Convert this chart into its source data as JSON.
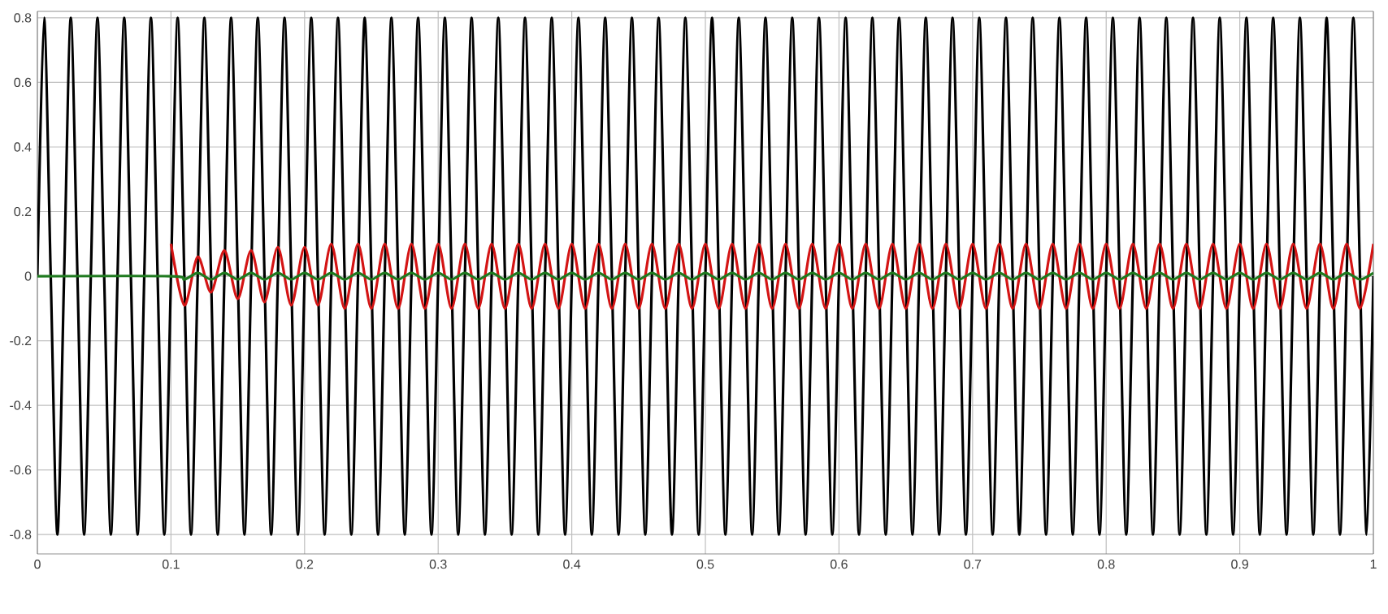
{
  "chart_data": {
    "type": "line",
    "xlim": [
      0,
      1
    ],
    "ylim": [
      -0.86,
      0.82
    ],
    "xticks": [
      0,
      0.1,
      0.2,
      0.3,
      0.4,
      0.5,
      0.6,
      0.7,
      0.8,
      0.9,
      1
    ],
    "yticks": [
      -0.8,
      -0.6,
      -0.4,
      -0.2,
      0,
      0.2,
      0.4,
      0.6,
      0.8
    ],
    "grid": true,
    "series": [
      {
        "color": "#000000",
        "x": [
          0,
          0.005,
          0.01,
          0.015,
          0.02,
          0.025,
          0.03,
          0.035,
          0.04,
          0.045,
          0.05,
          0.055,
          0.06,
          0.065,
          0.07,
          0.075,
          0.08,
          0.085,
          0.09,
          0.095,
          0.1,
          0.105,
          0.11,
          0.115,
          0.12,
          0.125,
          0.13,
          0.135,
          0.14,
          0.145,
          0.15,
          0.155,
          0.16,
          0.165,
          0.17,
          0.175,
          0.18,
          0.185,
          0.19,
          0.195,
          0.2,
          0.205,
          0.21,
          0.215,
          0.22,
          0.225,
          0.23,
          0.235,
          0.24,
          0.245,
          0.25,
          0.255,
          0.26,
          0.265,
          0.27,
          0.275,
          0.28,
          0.285,
          0.29,
          0.295,
          0.3,
          0.305,
          0.31,
          0.315,
          0.32,
          0.325,
          0.33,
          0.335,
          0.34,
          0.345,
          0.35,
          0.355,
          0.36,
          0.365,
          0.37,
          0.375,
          0.38,
          0.385,
          0.39,
          0.395,
          0.4,
          0.405,
          0.41,
          0.415,
          0.42,
          0.425,
          0.43,
          0.435,
          0.44,
          0.445,
          0.45,
          0.455,
          0.46,
          0.465,
          0.47,
          0.475,
          0.48,
          0.485,
          0.49,
          0.495,
          0.5,
          0.505,
          0.51,
          0.515,
          0.52,
          0.525,
          0.53,
          0.535,
          0.54,
          0.545,
          0.55,
          0.555,
          0.56,
          0.565,
          0.57,
          0.575,
          0.58,
          0.585,
          0.59,
          0.595,
          0.6,
          0.605,
          0.61,
          0.615,
          0.62,
          0.625,
          0.63,
          0.635,
          0.64,
          0.645,
          0.65,
          0.655,
          0.66,
          0.665,
          0.67,
          0.675,
          0.68,
          0.685,
          0.69,
          0.695,
          0.7,
          0.705,
          0.71,
          0.715,
          0.72,
          0.725,
          0.73,
          0.735,
          0.74,
          0.745,
          0.75,
          0.755,
          0.76,
          0.765,
          0.77,
          0.775,
          0.78,
          0.785,
          0.79,
          0.795,
          0.8,
          0.805,
          0.81,
          0.815,
          0.82,
          0.825,
          0.83,
          0.835,
          0.84,
          0.845,
          0.85,
          0.855,
          0.86,
          0.865,
          0.87,
          0.875,
          0.88,
          0.885,
          0.89,
          0.895,
          0.9,
          0.905,
          0.91,
          0.915,
          0.92,
          0.925,
          0.93,
          0.935,
          0.94,
          0.945,
          0.95,
          0.955,
          0.96,
          0.965,
          0.97,
          0.975,
          0.98,
          0.985,
          0.99,
          0.995,
          1
        ],
        "values": [
          0,
          0.8,
          0,
          -0.8,
          0,
          0.8,
          0,
          -0.8,
          0,
          0.8,
          0,
          -0.8,
          0,
          0.8,
          0,
          -0.8,
          0,
          0.8,
          0,
          -0.8,
          0,
          0.8,
          0,
          -0.8,
          0,
          0.8,
          0,
          -0.8,
          0,
          0.8,
          0,
          -0.8,
          0,
          0.8,
          0,
          -0.8,
          0,
          0.8,
          0,
          -0.8,
          0,
          0.8,
          0,
          -0.8,
          0,
          0.8,
          0,
          -0.8,
          0,
          0.8,
          0,
          -0.8,
          0,
          0.8,
          0,
          -0.8,
          0,
          0.8,
          0,
          -0.8,
          0,
          0.8,
          0,
          -0.8,
          0,
          0.8,
          0,
          -0.8,
          0,
          0.8,
          0,
          -0.8,
          0,
          0.8,
          0,
          -0.8,
          0,
          0.8,
          0,
          -0.8,
          0,
          0.8,
          0,
          -0.8,
          0,
          0.8,
          0,
          -0.8,
          0,
          0.8,
          0,
          -0.8,
          0,
          0.8,
          0,
          -0.8,
          0,
          0.8,
          0,
          -0.8,
          0,
          0.8,
          0,
          -0.8,
          0,
          0.8,
          0,
          -0.8,
          0,
          0.8,
          0,
          -0.8,
          0,
          0.8,
          0,
          -0.8,
          0,
          0.8,
          0,
          -0.8,
          0,
          0.8,
          0,
          -0.8,
          0,
          0.8,
          0,
          -0.8,
          0,
          0.8,
          0,
          -0.8,
          0,
          0.8,
          0,
          -0.8,
          0,
          0.8,
          0,
          -0.8,
          0,
          0.8,
          0,
          -0.8,
          0,
          0.8,
          0,
          -0.8,
          0,
          0.8,
          0,
          -0.8,
          0,
          0.8,
          0,
          -0.8,
          0,
          0.8,
          0,
          -0.8,
          0,
          0.8,
          0,
          -0.8,
          0,
          0.8,
          0,
          -0.8,
          0,
          0.8,
          0,
          -0.8,
          0,
          0.8,
          0,
          -0.8,
          0,
          0.8,
          0,
          -0.8,
          0,
          0.8,
          0,
          -0.8,
          0,
          0.8,
          0,
          -0.8,
          0,
          0.8,
          0,
          -0.8,
          0,
          0.8,
          0,
          -0.8,
          0,
          0.8,
          0,
          -0.8,
          0
        ]
      },
      {
        "color": "#d41414",
        "x": [
          0.1,
          0.11,
          0.12,
          0.13,
          0.14,
          0.15,
          0.16,
          0.17,
          0.18,
          0.19,
          0.2,
          0.21,
          0.22,
          0.23,
          0.24,
          0.25,
          0.26,
          0.27,
          0.28,
          0.29,
          0.3,
          0.31,
          0.32,
          0.33,
          0.34,
          0.35,
          0.36,
          0.37,
          0.38,
          0.39,
          0.4,
          0.41,
          0.42,
          0.43,
          0.44,
          0.45,
          0.46,
          0.47,
          0.48,
          0.49,
          0.5,
          0.51,
          0.52,
          0.53,
          0.54,
          0.55,
          0.56,
          0.57,
          0.58,
          0.59,
          0.6,
          0.61,
          0.62,
          0.63,
          0.64,
          0.65,
          0.66,
          0.67,
          0.68,
          0.69,
          0.7,
          0.71,
          0.72,
          0.73,
          0.74,
          0.75,
          0.76,
          0.77,
          0.78,
          0.79,
          0.8,
          0.81,
          0.82,
          0.83,
          0.84,
          0.85,
          0.86,
          0.87,
          0.88,
          0.89,
          0.9,
          0.91,
          0.92,
          0.93,
          0.94,
          0.95,
          0.96,
          0.97,
          0.98,
          0.99,
          1
        ],
        "values": [
          0.1,
          -0.09,
          0.06,
          -0.05,
          0.08,
          -0.07,
          0.08,
          -0.08,
          0.09,
          -0.09,
          0.09,
          -0.09,
          0.1,
          -0.1,
          0.1,
          -0.1,
          0.1,
          -0.1,
          0.1,
          -0.1,
          0.1,
          -0.1,
          0.1,
          -0.1,
          0.1,
          -0.1,
          0.1,
          -0.1,
          0.1,
          -0.1,
          0.1,
          -0.1,
          0.1,
          -0.1,
          0.1,
          -0.1,
          0.1,
          -0.1,
          0.1,
          -0.1,
          0.1,
          -0.1,
          0.1,
          -0.1,
          0.1,
          -0.1,
          0.1,
          -0.1,
          0.1,
          -0.1,
          0.1,
          -0.1,
          0.1,
          -0.1,
          0.1,
          -0.1,
          0.1,
          -0.1,
          0.1,
          -0.1,
          0.1,
          -0.1,
          0.1,
          -0.1,
          0.1,
          -0.1,
          0.1,
          -0.1,
          0.1,
          -0.1,
          0.1,
          -0.1,
          0.1,
          -0.1,
          0.1,
          -0.1,
          0.1,
          -0.1,
          0.1,
          -0.1,
          0.1,
          -0.1,
          0.1,
          -0.1,
          0.1,
          -0.1,
          0.1,
          -0.1,
          0.1,
          -0.1,
          0.1
        ]
      },
      {
        "color": "#1f7a1f",
        "x": [
          0,
          0.1,
          0.11,
          0.12,
          0.13,
          0.14,
          0.15,
          0.16,
          0.17,
          0.18,
          0.19,
          0.2,
          0.21,
          0.22,
          0.23,
          0.24,
          0.25,
          0.26,
          0.27,
          0.28,
          0.29,
          0.3,
          0.31,
          0.32,
          0.33,
          0.34,
          0.35,
          0.36,
          0.37,
          0.38,
          0.39,
          0.4,
          0.41,
          0.42,
          0.43,
          0.44,
          0.45,
          0.46,
          0.47,
          0.48,
          0.49,
          0.5,
          0.51,
          0.52,
          0.53,
          0.54,
          0.55,
          0.56,
          0.57,
          0.58,
          0.59,
          0.6,
          0.61,
          0.62,
          0.63,
          0.64,
          0.65,
          0.66,
          0.67,
          0.68,
          0.69,
          0.7,
          0.71,
          0.72,
          0.73,
          0.74,
          0.75,
          0.76,
          0.77,
          0.78,
          0.79,
          0.8,
          0.81,
          0.82,
          0.83,
          0.84,
          0.85,
          0.86,
          0.87,
          0.88,
          0.89,
          0.9,
          0.91,
          0.92,
          0.93,
          0.94,
          0.95,
          0.96,
          0.97,
          0.98,
          0.99,
          1
        ],
        "values": [
          0,
          0,
          -0.01,
          0.01,
          -0.01,
          0.01,
          -0.01,
          0.01,
          -0.01,
          0.01,
          -0.01,
          0.01,
          -0.01,
          0.01,
          -0.01,
          0.01,
          -0.01,
          0.01,
          -0.01,
          0.01,
          -0.01,
          0.01,
          -0.01,
          0.01,
          -0.01,
          0.01,
          -0.01,
          0.01,
          -0.01,
          0.01,
          -0.01,
          0.01,
          -0.01,
          0.01,
          -0.01,
          0.01,
          -0.01,
          0.01,
          -0.01,
          0.01,
          -0.01,
          0.01,
          -0.01,
          0.01,
          -0.01,
          0.01,
          -0.01,
          0.01,
          -0.01,
          0.01,
          -0.01,
          0.01,
          -0.01,
          0.01,
          -0.01,
          0.01,
          -0.01,
          0.01,
          -0.01,
          0.01,
          -0.01,
          0.01,
          -0.01,
          0.01,
          -0.01,
          0.01,
          -0.01,
          0.01,
          -0.01,
          0.01,
          -0.01,
          0.01,
          -0.01,
          0.01,
          -0.01,
          0.01,
          -0.01,
          0.01,
          -0.01,
          0.01,
          -0.01,
          0.01,
          -0.01,
          0.01,
          -0.01,
          0.01,
          -0.01,
          0.01,
          -0.01,
          0.01,
          -0.01,
          0.01
        ]
      }
    ]
  }
}
